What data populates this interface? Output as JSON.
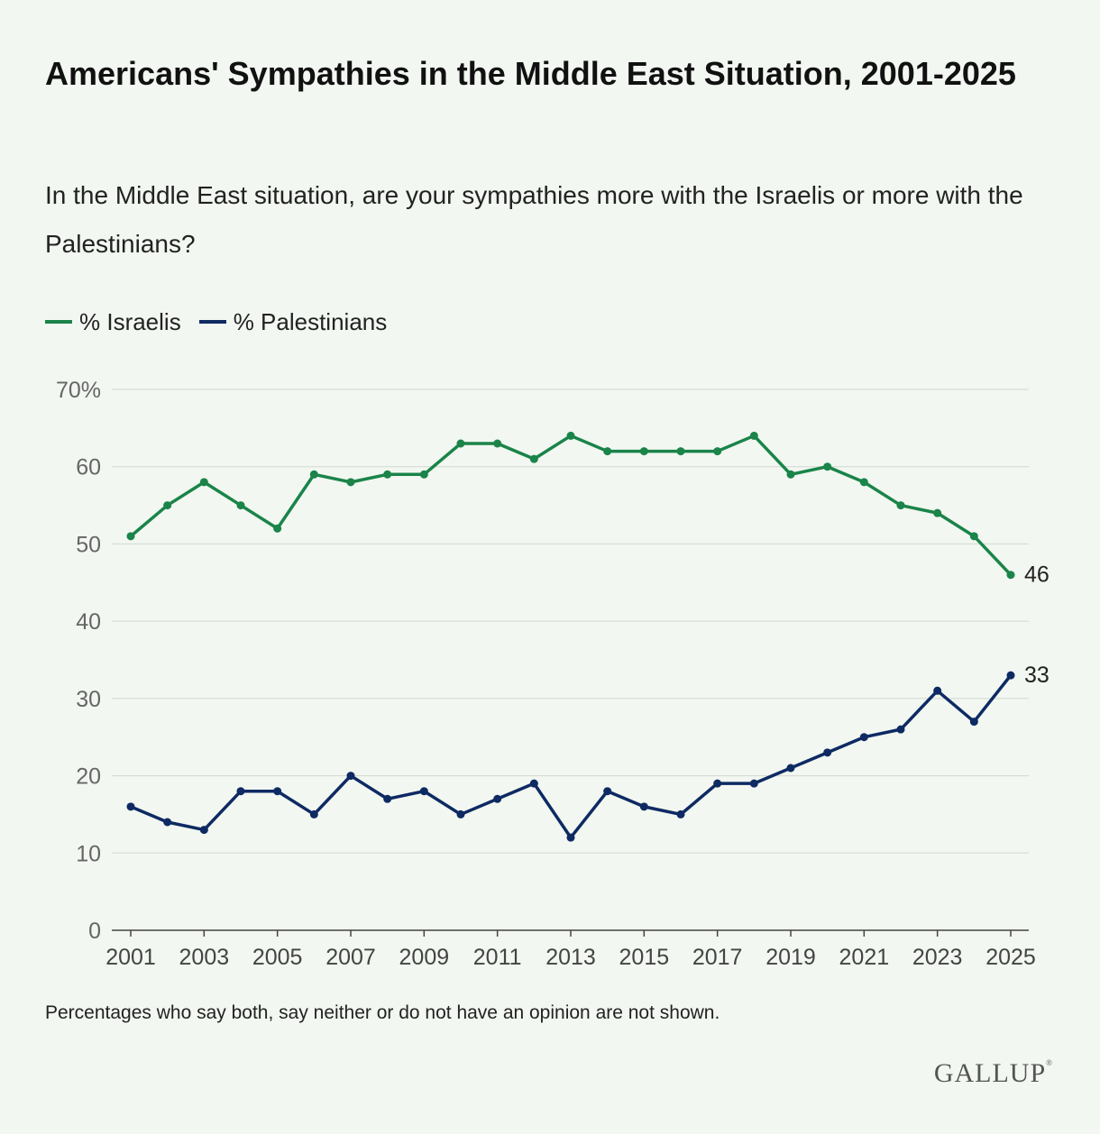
{
  "chart_data": {
    "type": "line",
    "title": "Americans' Sympathies in the Middle East Situation, 2001-2025",
    "subtitle": "In the Middle East situation, are your sympathies more with the Israelis or more with the Palestinians?",
    "note": "Percentages who say both, say neither or do not have an opinion are not shown.",
    "source": "GALLUP",
    "x": [
      2001,
      2002,
      2003,
      2004,
      2005,
      2006,
      2007,
      2008,
      2009,
      2010,
      2011,
      2012,
      2013,
      2014,
      2015,
      2016,
      2017,
      2018,
      2019,
      2020,
      2021,
      2022,
      2023,
      2024,
      2025
    ],
    "x_tick_labels": [
      "2001",
      "2003",
      "2005",
      "2007",
      "2009",
      "2011",
      "2013",
      "2015",
      "2017",
      "2019",
      "2021",
      "2023",
      "2025"
    ],
    "y_tick_labels": [
      "0",
      "10",
      "20",
      "30",
      "40",
      "50",
      "60",
      "70%"
    ],
    "ylim": [
      0,
      70
    ],
    "grid": true,
    "legend_position": "top-left",
    "series": [
      {
        "name": "% Israelis",
        "color": "#1a8449",
        "values": [
          51,
          55,
          58,
          55,
          52,
          59,
          58,
          59,
          59,
          63,
          63,
          61,
          64,
          62,
          62,
          62,
          62,
          64,
          59,
          60,
          58,
          55,
          54,
          51,
          46
        ],
        "end_label": "46"
      },
      {
        "name": "% Palestinians",
        "color": "#0e2a63",
        "values": [
          16,
          14,
          13,
          18,
          18,
          15,
          20,
          17,
          18,
          15,
          17,
          19,
          12,
          18,
          16,
          15,
          19,
          19,
          21,
          23,
          25,
          26,
          31,
          27,
          33
        ],
        "end_label": "33"
      }
    ]
  }
}
